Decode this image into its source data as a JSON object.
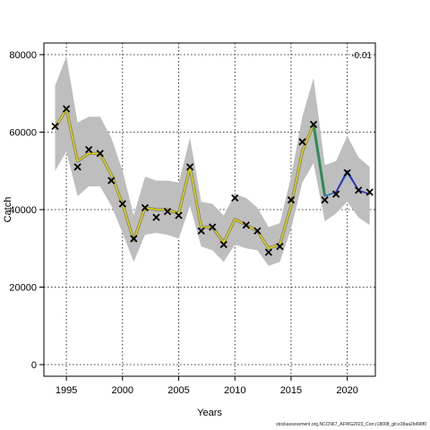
{
  "chart_data": {
    "type": "line",
    "xlabel": "Years",
    "ylabel": "Catch",
    "annotation": "-0.01",
    "footer": "stockassessment.org,NCCN67_AFWG2023_Corr,r18008_git:e38aa2b498f0",
    "xlim": [
      1993,
      2022.5
    ],
    "ylim": [
      -3000,
      83000
    ],
    "xticks": [
      1995,
      2000,
      2005,
      2010,
      2015,
      2020
    ],
    "yticks": [
      0,
      20000,
      40000,
      60000,
      80000
    ],
    "grid": true,
    "colors": {
      "band": "#bebebe",
      "fit": "#e0d600",
      "fit_outline": "#7a7a7a",
      "retro_1": "#2e8b57",
      "retro_2": "#3a78c2",
      "retro_3": "#2b2bb5",
      "observed": "#000000"
    },
    "fit": {
      "x": [
        1994,
        1995,
        1996,
        1997,
        1998,
        1999,
        2000,
        2001,
        2002,
        2003,
        2004,
        2005,
        2006,
        2007,
        2008,
        2009,
        2010,
        2011,
        2012,
        2013,
        2014,
        2015,
        2016,
        2017
      ],
      "y": [
        61000,
        66000,
        52500,
        54500,
        54500,
        49000,
        41500,
        32000,
        40500,
        40000,
        40000,
        39000,
        51000,
        35500,
        35500,
        31500,
        37500,
        36000,
        34500,
        30000,
        31000,
        41000,
        55000,
        62000
      ],
      "lower": [
        50000,
        55000,
        43500,
        46000,
        46000,
        41000,
        34000,
        26500,
        33500,
        34000,
        33500,
        32500,
        41000,
        30500,
        29500,
        26500,
        31000,
        30000,
        29500,
        25500,
        26500,
        35000,
        47000,
        52000
      ],
      "upper": [
        72000,
        79500,
        62500,
        64000,
        64000,
        58500,
        50000,
        38500,
        48500,
        47500,
        47500,
        47000,
        58500,
        42000,
        41500,
        38500,
        44000,
        43000,
        40500,
        35500,
        36500,
        48500,
        64000,
        74000
      ]
    },
    "band_tail": {
      "x": [
        2018,
        2019,
        2020,
        2021,
        2022
      ],
      "lower": [
        37000,
        39000,
        42000,
        38000,
        36000
      ],
      "upper": [
        51500,
        52500,
        59000,
        53500,
        51000
      ]
    },
    "retro_peels": [
      {
        "x": [
          2017,
          2018
        ],
        "y": [
          62000,
          43500
        ]
      },
      {
        "x": [
          2018,
          2019,
          2020,
          2021
        ],
        "y": [
          43500,
          44500,
          49500,
          45000
        ]
      },
      {
        "x": [
          2019,
          2020,
          2021,
          2022
        ],
        "y": [
          44500,
          50000,
          45000,
          44000
        ]
      }
    ],
    "observed": {
      "x": [
        1994,
        1995,
        1996,
        1997,
        1998,
        1999,
        2000,
        2001,
        2002,
        2003,
        2004,
        2005,
        2006,
        2007,
        2008,
        2009,
        2010,
        2011,
        2012,
        2013,
        2014,
        2015,
        2016,
        2017,
        2018,
        2019,
        2020,
        2021,
        2022
      ],
      "y": [
        61500,
        66000,
        51000,
        55500,
        54500,
        47500,
        41500,
        32500,
        40500,
        38000,
        39500,
        38500,
        51000,
        34500,
        35500,
        31000,
        43000,
        36000,
        34500,
        29000,
        30500,
        42500,
        57500,
        62000,
        42500,
        44000,
        49500,
        45000,
        44500
      ]
    }
  }
}
